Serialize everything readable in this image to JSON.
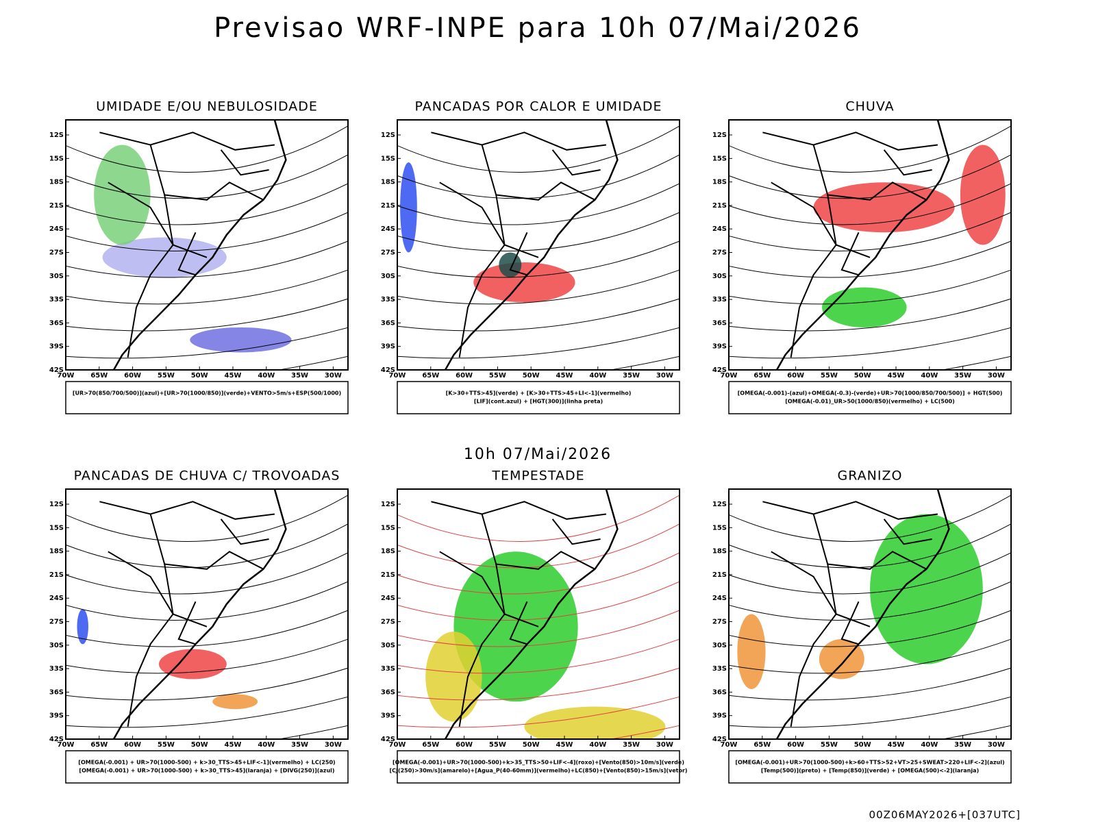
{
  "header": {
    "title": "Previsao WRF-INPE  para 10h 07/Mai/2026",
    "subtitle": "10h 07/Mai/2026"
  },
  "footer": "00Z06MAY2026+[037UTC]",
  "lat_labels": [
    "12S",
    "15S",
    "18S",
    "21S",
    "24S",
    "27S",
    "30S",
    "33S",
    "36S",
    "39S",
    "42S"
  ],
  "lon_labels": [
    "70W",
    "65W",
    "60W",
    "55W",
    "50W",
    "45W",
    "40W",
    "35W",
    "30W"
  ],
  "panels": [
    {
      "title": "UMIDADE E/OU NEBULOSIDADE",
      "legend": [
        "[UR>70(850/700/500)](azul)+[UR>70(1000/850)](verde)+VENTO>5m/s+ESP(500/1000)"
      ]
    },
    {
      "title": "PANCADAS POR CALOR E UMIDADE",
      "legend": [
        "[K>30+TTS>45](verde) + [K>30+TTS>45+LI<-1](vermelho)",
        "[LIF](cont.azul) + [HGT(300)](linha preta)"
      ]
    },
    {
      "title": "CHUVA",
      "legend": [
        "[OMEGA(-0.001)-(azul)+OMEGA(-0.3)-(verde)+UR>70(1000/850/700/500)] + HGT(500)",
        "[OMEGA(-0.01)_UR>50(1000/850)(vermelho) + LC(500)"
      ]
    },
    {
      "title": "PANCADAS DE CHUVA C/ TROVOADAS",
      "legend": [
        "[OMEGA(-0.001) + UR>70(1000-500) + k>30_TTS>45+LIF<-1](vermelho) + LC(250)",
        "[OMEGA(-0.001) + UR>70(1000-500) + k>30_TTS>45](laranja) + [DIVG(250)](azul)"
      ]
    },
    {
      "title": "TEMPESTADE",
      "legend": [
        "[OMEGA(-0.001)+UR>70(1000-500)+k>35_TTS>50+LIF<-4](roxo)+[Vento(850)>10m/s](verde)",
        "[CJ(250)>30m/s](amarelo)+[Agua_P(40-60mm)](vermelho)+LC(850)+[Vento(850)>15m/s](vetor)"
      ]
    },
    {
      "title": "GRANIZO",
      "legend": [
        "[OMEGA(-0.001)+UR>70(1000-500)+k>60+TTS>52+VT>25+SWEAT>220+LIF<-2](azul)",
        "[Temp(500)](preto) + [Temp(850)](verde) + [OMEGA(500)<-2](laranja)"
      ]
    }
  ]
}
